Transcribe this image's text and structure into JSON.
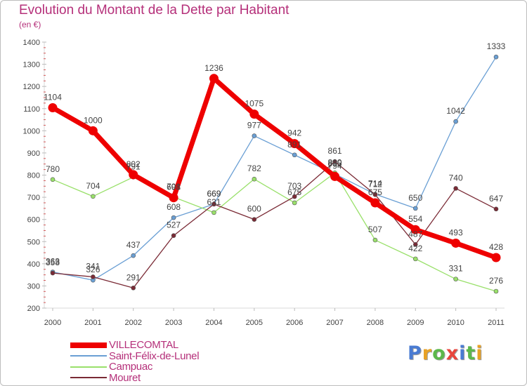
{
  "header": {
    "title": "Evolution du Montant de la Dette par Habitant",
    "subtitle": "(en €)"
  },
  "logo": {
    "text": "Proxiti",
    "letter_colors": [
      "#4a7bd2",
      "#e8a225",
      "#5cb84b",
      "#e8453c",
      "#4a7bd2",
      "#5cb84b",
      "#e8a225"
    ]
  },
  "chart_data": {
    "type": "line",
    "title": "Evolution du Montant de la Dette par Habitant",
    "subtitle": "(en €)",
    "xlabel": "",
    "ylabel": "",
    "x": [
      "2000",
      "2001",
      "2002",
      "2003",
      "2004",
      "2005",
      "2006",
      "2007",
      "2008",
      "2009",
      "2010",
      "2011"
    ],
    "ylim": [
      200,
      1400
    ],
    "yticks": [
      200,
      300,
      400,
      500,
      600,
      700,
      800,
      900,
      1000,
      1100,
      1200,
      1300,
      1400
    ],
    "grid": false,
    "legend_position": "bottom-left",
    "series": [
      {
        "name": "VILLECOMTAL",
        "color": "#ee0000",
        "values": [
          1104,
          1000,
          802,
          698,
          1236,
          1075,
          942,
          794,
          675,
          554,
          493,
          428
        ],
        "labels": [
          "1104",
          "1000",
          "802",
          "698",
          "1236",
          "1075",
          "942",
          "794",
          "675",
          "554",
          "493",
          "428"
        ]
      },
      {
        "name": "Saint-Félix-de-Lunel",
        "color": "#6a9fd4",
        "values": [
          363,
          326,
          437,
          608,
          669,
          977,
          891,
          805,
          714,
          650,
          1042,
          1333
        ],
        "labels": [
          "363",
          "326",
          "437",
          "608",
          "669",
          "977",
          "891",
          "805",
          "714",
          "650",
          "1042",
          "1333"
        ]
      },
      {
        "name": "Campuac",
        "color": "#99e06a",
        "values": [
          780,
          704,
          791,
          701,
          631,
          782,
          675,
          810,
          507,
          422,
          331,
          276
        ],
        "labels": [
          "780",
          "704",
          "791",
          "701",
          "631",
          "782",
          "675",
          "810",
          "507",
          "422",
          "331",
          "276"
        ]
      },
      {
        "name": "Mouret",
        "color": "#7a2a35",
        "values": [
          358,
          341,
          291,
          527,
          669,
          600,
          703,
          861,
          712,
          487,
          740,
          647
        ],
        "labels": [
          "358",
          "341",
          "291",
          "527",
          "669",
          "600",
          "703",
          "861",
          "712",
          "487",
          "740",
          "647"
        ]
      }
    ]
  }
}
